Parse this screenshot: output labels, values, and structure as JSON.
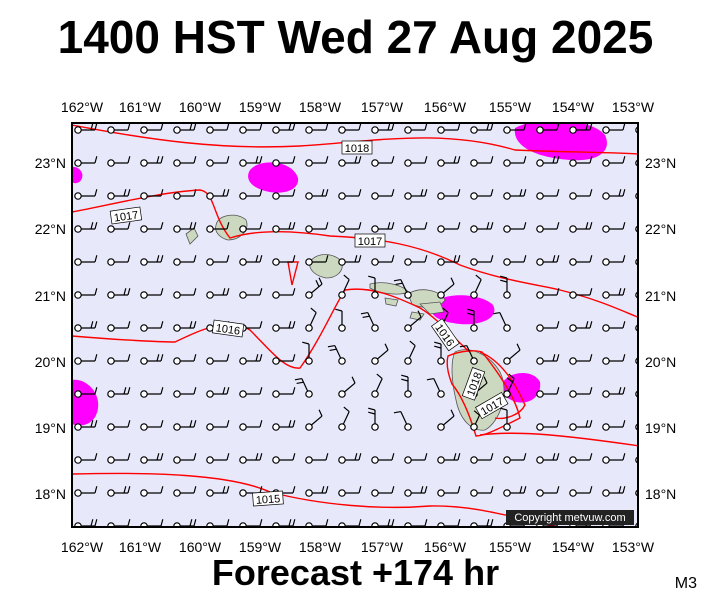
{
  "title": "1400 HST Wed 27 Aug 2025",
  "footer": "Forecast +174 hr",
  "model_label": "M3",
  "copyright": "Copyright metvuw.com",
  "lon_ticks": [
    "162°W",
    "161°W",
    "160°W",
    "159°W",
    "158°W",
    "157°W",
    "156°W",
    "155°W",
    "154°W",
    "153°W"
  ],
  "lat_ticks": [
    "23°N",
    "22°N",
    "21°N",
    "20°N",
    "19°N",
    "18°N"
  ],
  "isobar_labels": [
    "1018",
    "1017",
    "1017",
    "1016",
    "1016",
    "1018",
    "1017",
    "1015"
  ],
  "colors": {
    "ocean": "#e8e8fb",
    "isobar": "#ff0000",
    "rain": "#ff00ff",
    "land": "#cdd8c0",
    "wind": "#000000"
  }
}
